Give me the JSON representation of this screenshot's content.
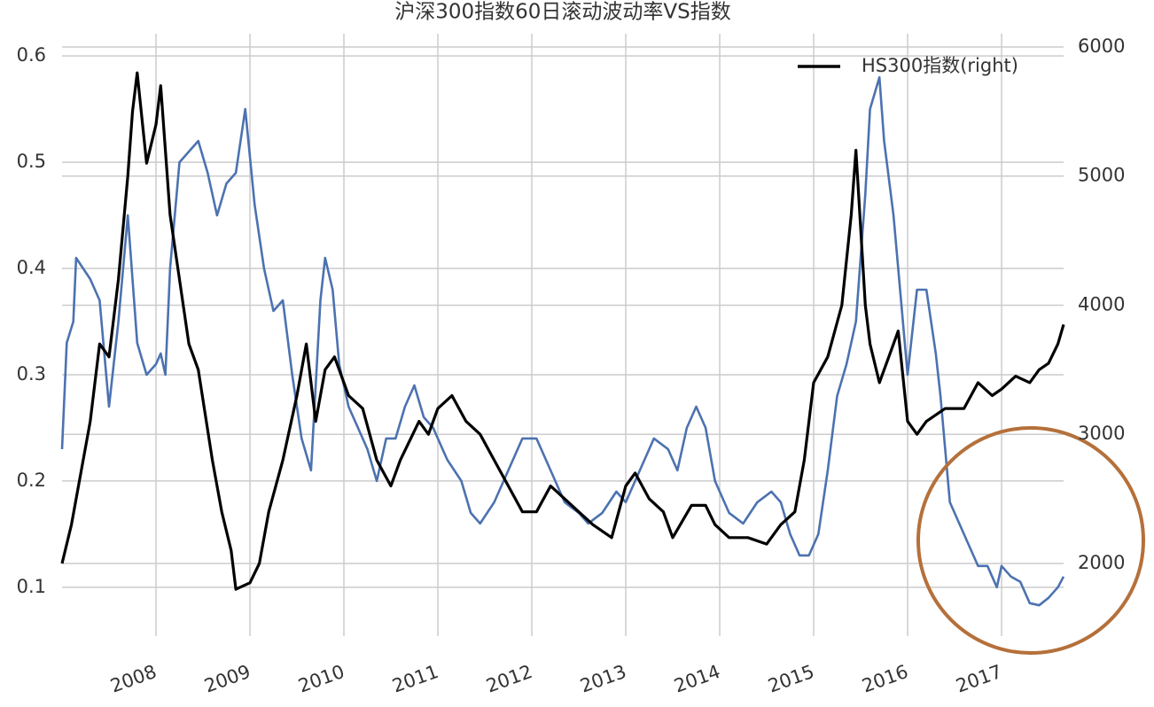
{
  "chart_data": {
    "type": "line",
    "title": "沪深300指数60日滚动波动率VS指数",
    "xlim": [
      2007.0,
      2017.66
    ],
    "xticks": [
      2008,
      2009,
      2010,
      2011,
      2012,
      2013,
      2014,
      2015,
      2016,
      2017
    ],
    "ylim": [
      0.054,
      0.621
    ],
    "yticks": [
      0.1,
      0.2,
      0.3,
      0.4,
      0.5,
      0.6
    ],
    "y2lim": [
      1437,
      6103
    ],
    "y2ticks": [
      2000,
      3000,
      4000,
      5000,
      6000
    ],
    "grid": true,
    "legend": "upper right",
    "series": [
      {
        "color": "#4c72b0",
        "x": [
          2007.0,
          2007.05,
          2007.12,
          2007.15,
          2007.3,
          2007.4,
          2007.5,
          2007.6,
          2007.7,
          2007.8,
          2007.9,
          2008.0,
          2008.05,
          2008.1,
          2008.15,
          2008.25,
          2008.35,
          2008.45,
          2008.55,
          2008.65,
          2008.75,
          2008.85,
          2008.95,
          2009.05,
          2009.15,
          2009.25,
          2009.35,
          2009.45,
          2009.55,
          2009.65,
          2009.75,
          2009.8,
          2009.88,
          2009.95,
          2010.05,
          2010.15,
          2010.25,
          2010.35,
          2010.45,
          2010.55,
          2010.65,
          2010.75,
          2010.85,
          2010.95,
          2011.1,
          2011.25,
          2011.35,
          2011.45,
          2011.6,
          2011.75,
          2011.9,
          2012.05,
          2012.15,
          2012.25,
          2012.35,
          2012.5,
          2012.6,
          2012.75,
          2012.9,
          2013.0,
          2013.15,
          2013.3,
          2013.45,
          2013.55,
          2013.65,
          2013.75,
          2013.85,
          2013.95,
          2014.1,
          2014.25,
          2014.4,
          2014.55,
          2014.65,
          2014.75,
          2014.85,
          2014.95,
          2015.05,
          2015.15,
          2015.25,
          2015.35,
          2015.45,
          2015.55,
          2015.6,
          2015.7,
          2015.75,
          2015.85,
          2015.95,
          2016.0,
          2016.1,
          2016.2,
          2016.3,
          2016.35,
          2016.45,
          2016.55,
          2016.65,
          2016.75,
          2016.85,
          2016.95,
          2017.0,
          2017.1,
          2017.2,
          2017.3,
          2017.4,
          2017.5,
          2017.6,
          2017.66
        ],
        "values": [
          0.23,
          0.33,
          0.35,
          0.41,
          0.39,
          0.37,
          0.27,
          0.35,
          0.45,
          0.33,
          0.3,
          0.31,
          0.32,
          0.3,
          0.4,
          0.5,
          0.51,
          0.52,
          0.49,
          0.45,
          0.48,
          0.49,
          0.55,
          0.46,
          0.4,
          0.36,
          0.37,
          0.3,
          0.24,
          0.21,
          0.37,
          0.41,
          0.38,
          0.31,
          0.27,
          0.25,
          0.23,
          0.2,
          0.24,
          0.24,
          0.27,
          0.29,
          0.26,
          0.25,
          0.22,
          0.2,
          0.17,
          0.16,
          0.18,
          0.21,
          0.24,
          0.24,
          0.22,
          0.2,
          0.18,
          0.17,
          0.16,
          0.17,
          0.19,
          0.18,
          0.21,
          0.24,
          0.23,
          0.21,
          0.25,
          0.27,
          0.25,
          0.2,
          0.17,
          0.16,
          0.18,
          0.19,
          0.18,
          0.15,
          0.13,
          0.13,
          0.15,
          0.21,
          0.28,
          0.31,
          0.35,
          0.47,
          0.55,
          0.58,
          0.52,
          0.45,
          0.35,
          0.3,
          0.38,
          0.38,
          0.32,
          0.28,
          0.18,
          0.16,
          0.14,
          0.12,
          0.12,
          0.1,
          0.12,
          0.11,
          0.105,
          0.085,
          0.083,
          0.09,
          0.1,
          0.11
        ]
      },
      {
        "name": "HS300指数(right)",
        "color": "#000000",
        "axis": "y2",
        "x": [
          2007.0,
          2007.1,
          2007.2,
          2007.3,
          2007.4,
          2007.5,
          2007.6,
          2007.7,
          2007.75,
          2007.8,
          2007.9,
          2008.0,
          2008.05,
          2008.15,
          2008.25,
          2008.35,
          2008.45,
          2008.6,
          2008.7,
          2008.8,
          2008.85,
          2009.0,
          2009.1,
          2009.2,
          2009.35,
          2009.5,
          2009.6,
          2009.7,
          2009.8,
          2009.9,
          2010.05,
          2010.2,
          2010.35,
          2010.5,
          2010.6,
          2010.8,
          2010.9,
          2011.0,
          2011.15,
          2011.3,
          2011.45,
          2011.6,
          2011.75,
          2011.9,
          2012.05,
          2012.2,
          2012.35,
          2012.5,
          2012.65,
          2012.85,
          2013.0,
          2013.1,
          2013.25,
          2013.4,
          2013.5,
          2013.7,
          2013.85,
          2013.95,
          2014.1,
          2014.3,
          2014.5,
          2014.65,
          2014.8,
          2014.9,
          2015.0,
          2015.15,
          2015.3,
          2015.4,
          2015.45,
          2015.55,
          2015.6,
          2015.7,
          2015.8,
          2015.9,
          2016.0,
          2016.1,
          2016.2,
          2016.4,
          2016.6,
          2016.75,
          2016.9,
          2017.0,
          2017.15,
          2017.3,
          2017.4,
          2017.5,
          2017.6,
          2017.66
        ],
        "values": [
          2000,
          2300,
          2700,
          3100,
          3700,
          3600,
          4200,
          5000,
          5500,
          5800,
          5100,
          5400,
          5700,
          4700,
          4200,
          3700,
          3500,
          2800,
          2400,
          2100,
          1800,
          1850,
          2000,
          2400,
          2800,
          3300,
          3700,
          3100,
          3500,
          3600,
          3300,
          3200,
          2800,
          2600,
          2800,
          3100,
          3000,
          3200,
          3300,
          3100,
          3000,
          2800,
          2600,
          2400,
          2400,
          2600,
          2500,
          2400,
          2300,
          2200,
          2600,
          2700,
          2500,
          2400,
          2200,
          2450,
          2450,
          2300,
          2200,
          2200,
          2150,
          2300,
          2400,
          2800,
          3400,
          3600,
          4000,
          4700,
          5200,
          4000,
          3700,
          3400,
          3600,
          3800,
          3100,
          3000,
          3100,
          3200,
          3200,
          3400,
          3300,
          3350,
          3450,
          3400,
          3500,
          3550,
          3700,
          3850
        ]
      }
    ]
  }
}
